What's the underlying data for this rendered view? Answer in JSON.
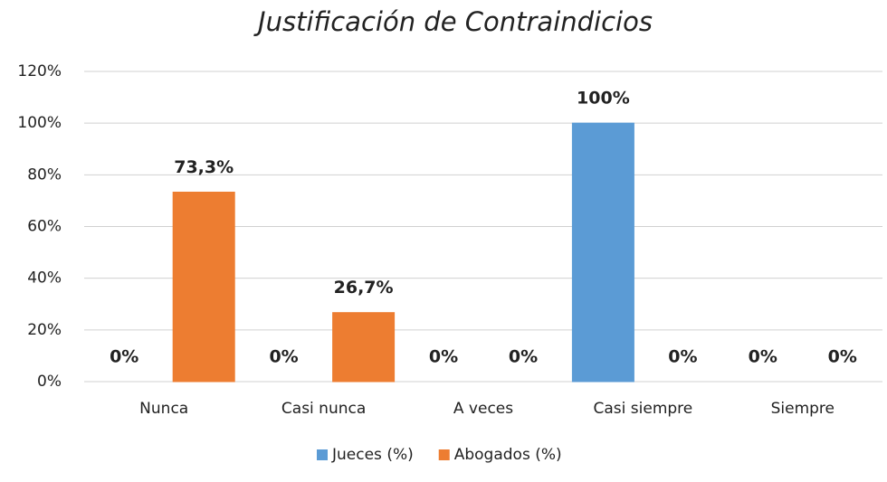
{
  "chart_data": {
    "type": "bar",
    "title": "Justificación de Contraindicios",
    "categories": [
      "Nunca",
      "Casi nunca",
      "A veces",
      "Casi siempre",
      "Siempre"
    ],
    "series": [
      {
        "name": "Jueces (%)",
        "color": "#5b9bd5",
        "values": [
          0,
          0,
          0,
          100,
          0
        ],
        "value_labels": [
          "0%",
          "0%",
          "0%",
          "100%",
          "0%"
        ]
      },
      {
        "name": "Abogados (%)",
        "color": "#ed7d31",
        "values": [
          73.3,
          26.7,
          0,
          0,
          0
        ],
        "value_labels": [
          "73,3%",
          "26,7%",
          "0%",
          "0%",
          "0%"
        ]
      }
    ],
    "ylim": [
      0,
      120
    ],
    "yticks": [
      {
        "value": 0,
        "label": "0%"
      },
      {
        "value": 20,
        "label": "20%"
      },
      {
        "value": 40,
        "label": "40%"
      },
      {
        "value": 60,
        "label": "60%"
      },
      {
        "value": 80,
        "label": "80%"
      },
      {
        "value": 100,
        "label": "100%"
      },
      {
        "value": 120,
        "label": "120%"
      }
    ],
    "grid": true,
    "legend": "bottom"
  }
}
